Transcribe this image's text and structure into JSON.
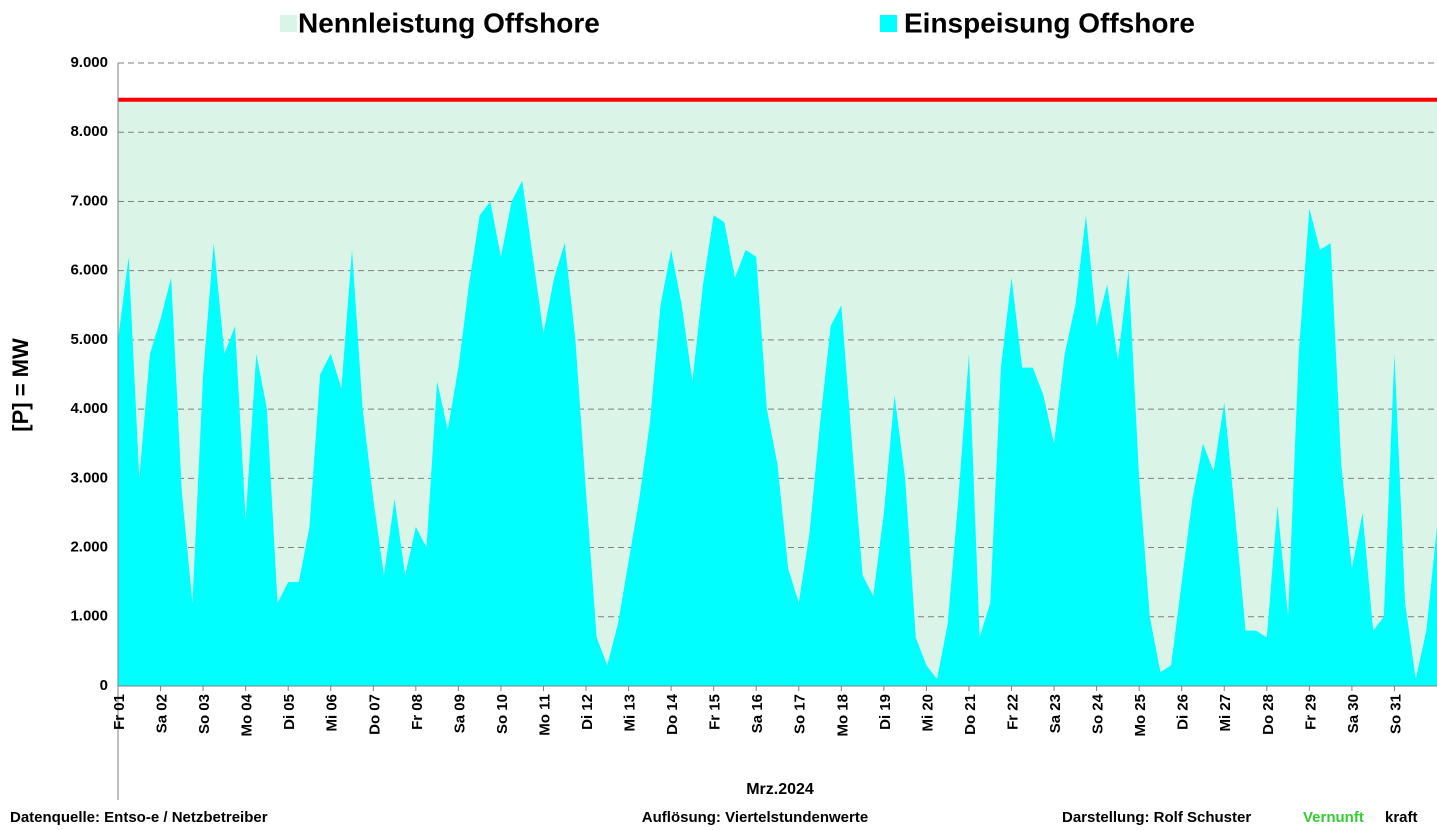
{
  "chart_data": {
    "type": "area",
    "legend_position": "top",
    "y_label": "[P] = MW",
    "x_label": "Mrz.2024",
    "footer_left": "Datenquelle:  Entso-e  / Netzbetreiber",
    "footer_center": "Auflösung: Viertelstundenwerte",
    "footer_right": "Darstellung:  Rolf Schuster",
    "brand_a": "Vernunft",
    "brand_a_color": "#33cc33",
    "brand_b": "kraft",
    "ylim": [
      0,
      9000
    ],
    "yticks": [
      {
        "value": 0,
        "label": "0"
      },
      {
        "value": 1000,
        "label": "1.000"
      },
      {
        "value": 2000,
        "label": "2.000"
      },
      {
        "value": 3000,
        "label": "3.000"
      },
      {
        "value": 4000,
        "label": "4.000"
      },
      {
        "value": 5000,
        "label": "5.000"
      },
      {
        "value": 6000,
        "label": "6.000"
      },
      {
        "value": 7000,
        "label": "7.000"
      },
      {
        "value": 8000,
        "label": "8.000"
      },
      {
        "value": 9000,
        "label": "9.000"
      }
    ],
    "grid": true,
    "xlim": [
      0,
      31
    ],
    "xticks": [
      {
        "value": 0,
        "label": "Fr 01"
      },
      {
        "value": 1,
        "label": "Sa 02"
      },
      {
        "value": 2,
        "label": "So 03"
      },
      {
        "value": 3,
        "label": "Mo 04"
      },
      {
        "value": 4,
        "label": "Di 05"
      },
      {
        "value": 5,
        "label": "Mi 06"
      },
      {
        "value": 6,
        "label": "Do 07"
      },
      {
        "value": 7,
        "label": "Fr 08"
      },
      {
        "value": 8,
        "label": "Sa 09"
      },
      {
        "value": 9,
        "label": "So 10"
      },
      {
        "value": 10,
        "label": "Mo 11"
      },
      {
        "value": 11,
        "label": "Di 12"
      },
      {
        "value": 12,
        "label": "Mi 13"
      },
      {
        "value": 13,
        "label": "Do 14"
      },
      {
        "value": 14,
        "label": "Fr 15"
      },
      {
        "value": 15,
        "label": "Sa 16"
      },
      {
        "value": 16,
        "label": "So 17"
      },
      {
        "value": 17,
        "label": "Mo 18"
      },
      {
        "value": 18,
        "label": "Di 19"
      },
      {
        "value": 19,
        "label": "Mi 20"
      },
      {
        "value": 20,
        "label": "Do 21"
      },
      {
        "value": 21,
        "label": "Fr 22"
      },
      {
        "value": 22,
        "label": "Sa 23"
      },
      {
        "value": 23,
        "label": "So 24"
      },
      {
        "value": 24,
        "label": "Mo 25"
      },
      {
        "value": 25,
        "label": "Di 26"
      },
      {
        "value": 26,
        "label": "Mi 27"
      },
      {
        "value": 27,
        "label": "Do 28"
      },
      {
        "value": 28,
        "label": "Fr 29"
      },
      {
        "value": 29,
        "label": "Sa 30"
      },
      {
        "value": 30,
        "label": "So 31"
      }
    ],
    "x": [
      0,
      0.25,
      0.5,
      0.75,
      1,
      1.25,
      1.5,
      1.75,
      2,
      2.25,
      2.5,
      2.75,
      3,
      3.25,
      3.5,
      3.75,
      4,
      4.25,
      4.5,
      4.75,
      5,
      5.25,
      5.5,
      5.75,
      6,
      6.25,
      6.5,
      6.75,
      7,
      7.25,
      7.5,
      7.75,
      8,
      8.25,
      8.5,
      8.75,
      9,
      9.25,
      9.5,
      9.75,
      10,
      10.25,
      10.5,
      10.75,
      11,
      11.25,
      11.5,
      11.75,
      12,
      12.25,
      12.5,
      12.75,
      13,
      13.25,
      13.5,
      13.75,
      14,
      14.25,
      14.5,
      14.75,
      15,
      15.25,
      15.5,
      15.75,
      16,
      16.25,
      16.5,
      16.75,
      17,
      17.25,
      17.5,
      17.75,
      18,
      18.25,
      18.5,
      18.75,
      19,
      19.25,
      19.5,
      19.75,
      20,
      20.25,
      20.5,
      20.75,
      21,
      21.25,
      21.5,
      21.75,
      22,
      22.25,
      22.5,
      22.75,
      23,
      23.25,
      23.5,
      23.75,
      24,
      24.25,
      24.5,
      24.75,
      25,
      25.25,
      25.5,
      25.75,
      26,
      26.25,
      26.5,
      26.75,
      27,
      27.25,
      27.5,
      27.75,
      28,
      28.25,
      28.5,
      28.75,
      29,
      29.25,
      29.5,
      29.75,
      30,
      30.25,
      30.5,
      30.75,
      31
    ],
    "series": [
      {
        "name": "Nennleistung Offshore",
        "color": "#daf5e8",
        "line_color": "#ff0000",
        "value": 8470
      },
      {
        "name": "Einspeisung Offshore",
        "color": "#00ffff",
        "values": [
          5000,
          6200,
          3000,
          4800,
          5300,
          5900,
          2800,
          1200,
          4500,
          6400,
          4800,
          5200,
          2400,
          4800,
          4000,
          1200,
          1500,
          1500,
          2300,
          4500,
          4800,
          4300,
          6300,
          4000,
          2700,
          1600,
          2700,
          1600,
          2300,
          2000,
          4400,
          3700,
          4600,
          5800,
          6800,
          7000,
          6200,
          7000,
          7300,
          6200,
          5100,
          5900,
          6400,
          5000,
          2800,
          700,
          300,
          900,
          1800,
          2700,
          3800,
          5500,
          6300,
          5500,
          4400,
          5800,
          6800,
          6700,
          5900,
          6300,
          6200,
          4000,
          3200,
          1700,
          1200,
          2200,
          3800,
          5200,
          5500,
          3500,
          1600,
          1300,
          2500,
          4200,
          3000,
          700,
          300,
          100,
          900,
          2700,
          4800,
          700,
          1200,
          4600,
          5900,
          4600,
          4600,
          4200,
          3500,
          4800,
          5500,
          6800,
          5200,
          5800,
          4700,
          6000,
          3000,
          1000,
          200,
          300,
          1500,
          2700,
          3500,
          3100,
          4100,
          2500,
          800,
          800,
          700,
          2600,
          1000,
          4800,
          6900,
          6300,
          6400,
          3200,
          1700,
          2500,
          800,
          1000,
          4800,
          1200,
          100,
          800,
          2300
        ]
      }
    ]
  }
}
